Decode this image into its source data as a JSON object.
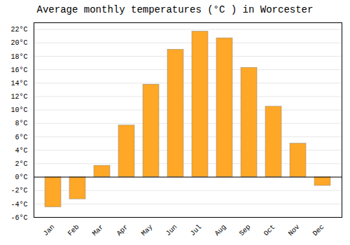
{
  "chart_data": {
    "type": "bar",
    "title": "Average monthly temperatures (°C ) in Worcester",
    "categories": [
      "Jan",
      "Feb",
      "Mar",
      "Apr",
      "May",
      "Jun",
      "Jul",
      "Aug",
      "Sep",
      "Oct",
      "Nov",
      "Dec"
    ],
    "values": [
      -4.5,
      -3.3,
      1.7,
      7.7,
      13.8,
      19.0,
      21.7,
      20.7,
      16.3,
      10.5,
      5.0,
      -1.3
    ],
    "color": "#FFA726",
    "ylim": [
      -6,
      23
    ],
    "yticks": [
      {
        "value": -6,
        "label": "-6°C"
      },
      {
        "value": -4,
        "label": "-4°C"
      },
      {
        "value": -2,
        "label": "-2°C"
      },
      {
        "value": 0,
        "label": "0°C"
      },
      {
        "value": 2,
        "label": "2°C"
      },
      {
        "value": 4,
        "label": "4°C"
      },
      {
        "value": 6,
        "label": "6°C"
      },
      {
        "value": 8,
        "label": "8°C"
      },
      {
        "value": 10,
        "label": "10°C"
      },
      {
        "value": 12,
        "label": "12°C"
      },
      {
        "value": 14,
        "label": "14°C"
      },
      {
        "value": 16,
        "label": "16°C"
      },
      {
        "value": 18,
        "label": "18°C"
      },
      {
        "value": 20,
        "label": "20°C"
      },
      {
        "value": 22,
        "label": "22°C"
      }
    ],
    "grid": true
  }
}
